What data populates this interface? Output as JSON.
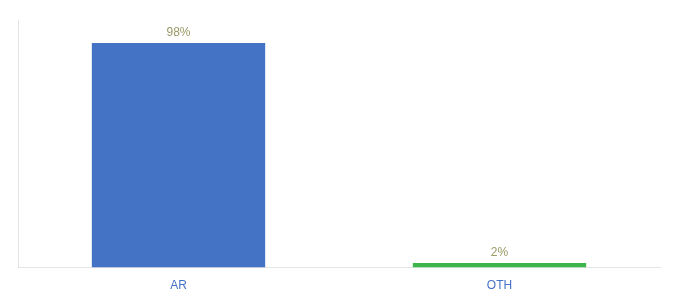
{
  "chart_data": {
    "type": "bar",
    "categories": [
      "AR",
      "OTH"
    ],
    "values": [
      98,
      2
    ],
    "value_labels": [
      "98%",
      "2%"
    ],
    "colors": [
      "#4472C4",
      "#3CB54A"
    ],
    "ylim": [
      0,
      108
    ],
    "data_labels": true,
    "tick_labels": "x",
    "grid": false
  }
}
